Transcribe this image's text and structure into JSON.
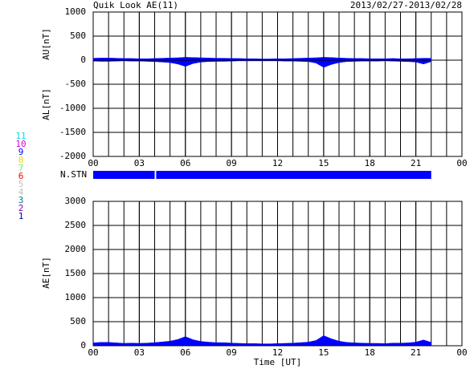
{
  "header": {
    "title": "Quik Look AE(11)",
    "date_range": "2013/02/27-2013/02/28"
  },
  "stations": {
    "label": "N.STN",
    "color": "#0000ff",
    "segments": [
      [
        0,
        4
      ],
      [
        4.1,
        22
      ]
    ],
    "numbers": [
      {
        "label": "11",
        "color": "#00e0e0"
      },
      {
        "label": "10",
        "color": "#e000e0"
      },
      {
        "label": "9",
        "color": "#0000ff"
      },
      {
        "label": "8",
        "color": "#e8e000"
      },
      {
        "label": "7",
        "color": "#80e080"
      },
      {
        "label": "6",
        "color": "#ff0000"
      },
      {
        "label": "5",
        "color": "#c0c0c0"
      },
      {
        "label": "4",
        "color": "#c0c0c0"
      },
      {
        "label": "3",
        "color": "#008080"
      },
      {
        "label": "2",
        "color": "#8000c0"
      },
      {
        "label": "1",
        "color": "#0000c0"
      }
    ]
  },
  "chart_data": [
    {
      "type": "area",
      "ylabels": [
        "AU[nT]",
        "AL[nT]"
      ],
      "x": [
        0,
        0.5,
        1,
        1.5,
        2,
        2.5,
        3,
        3.5,
        4,
        4.5,
        5,
        5.5,
        6,
        6.5,
        7,
        7.5,
        8,
        8.5,
        9,
        9.5,
        10,
        10.5,
        11,
        11.5,
        12,
        12.5,
        13,
        13.5,
        14,
        14.5,
        15,
        15.5,
        16,
        16.5,
        17,
        17.5,
        18,
        18.5,
        19,
        19.5,
        20,
        20.5,
        21,
        21.5,
        22
      ],
      "series": [
        {
          "name": "AU",
          "color": "#0000ff",
          "values": [
            40,
            45,
            45,
            40,
            35,
            35,
            30,
            30,
            35,
            40,
            45,
            50,
            60,
            55,
            50,
            45,
            40,
            40,
            35,
            35,
            30,
            30,
            25,
            25,
            30,
            30,
            35,
            40,
            45,
            50,
            60,
            55,
            45,
            40,
            35,
            35,
            30,
            30,
            30,
            35,
            30,
            30,
            35,
            40,
            40
          ]
        },
        {
          "name": "AL",
          "color": "#0000ff",
          "values": [
            -20,
            -25,
            -25,
            -20,
            -15,
            -20,
            -20,
            -25,
            -30,
            -40,
            -50,
            -80,
            -130,
            -70,
            -40,
            -30,
            -25,
            -25,
            -20,
            -15,
            -15,
            -15,
            -15,
            -15,
            -15,
            -20,
            -20,
            -25,
            -30,
            -60,
            -150,
            -90,
            -50,
            -30,
            -25,
            -20,
            -20,
            -20,
            -15,
            -20,
            -25,
            -30,
            -40,
            -80,
            -30
          ]
        }
      ],
      "xlim": [
        0,
        24
      ],
      "xticks": [
        {
          "value": 0,
          "label": "00"
        },
        {
          "value": 3,
          "label": "03"
        },
        {
          "value": 6,
          "label": "06"
        },
        {
          "value": 9,
          "label": "09"
        },
        12,
        15,
        18,
        21,
        {
          "value": 24,
          "label": "00"
        }
      ],
      "ylim": [
        -2000,
        1000
      ],
      "yticks": [
        1000,
        500,
        0,
        -500,
        -1000,
        -1500,
        -2000
      ],
      "grid": true
    },
    {
      "type": "area",
      "ylabels": [
        "AE[nT]"
      ],
      "xlabel": "Time [UT]",
      "x": [
        0,
        0.5,
        1,
        1.5,
        2,
        2.5,
        3,
        3.5,
        4,
        4.5,
        5,
        5.5,
        6,
        6.5,
        7,
        7.5,
        8,
        8.5,
        9,
        9.5,
        10,
        10.5,
        11,
        11.5,
        12,
        12.5,
        13,
        13.5,
        14,
        14.5,
        15,
        15.5,
        16,
        16.5,
        17,
        17.5,
        18,
        18.5,
        19,
        19.5,
        20,
        20.5,
        21,
        21.5,
        22
      ],
      "series": [
        {
          "name": "AE",
          "color": "#0000ff",
          "values": [
            60,
            70,
            70,
            60,
            50,
            55,
            50,
            55,
            65,
            80,
            95,
            130,
            190,
            125,
            90,
            75,
            65,
            65,
            55,
            50,
            45,
            45,
            40,
            40,
            45,
            50,
            55,
            65,
            75,
            110,
            210,
            145,
            95,
            70,
            60,
            55,
            50,
            50,
            45,
            55,
            55,
            60,
            75,
            120,
            70
          ]
        }
      ],
      "xlim": [
        0,
        24
      ],
      "xticks": [
        {
          "value": 0,
          "label": "00"
        },
        {
          "value": 3,
          "label": "03"
        },
        {
          "value": 6,
          "label": "06"
        },
        {
          "value": 9,
          "label": "09"
        },
        12,
        15,
        18,
        21,
        {
          "value": 24,
          "label": "00"
        }
      ],
      "ylim": [
        0,
        3000
      ],
      "yticks": [
        3000,
        2500,
        2000,
        1500,
        1000,
        500,
        0
      ],
      "grid": true
    }
  ]
}
